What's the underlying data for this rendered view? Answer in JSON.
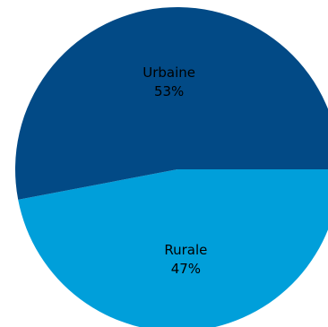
{
  "chart_data": {
    "type": "pie",
    "slices": [
      {
        "label": "Urbaine",
        "value_label": "53%",
        "value": 53,
        "color": "#024a86"
      },
      {
        "label": "Rurale",
        "value_label": "47%",
        "value": 47,
        "color": "#009fda"
      }
    ],
    "title": "",
    "legend": "none"
  }
}
